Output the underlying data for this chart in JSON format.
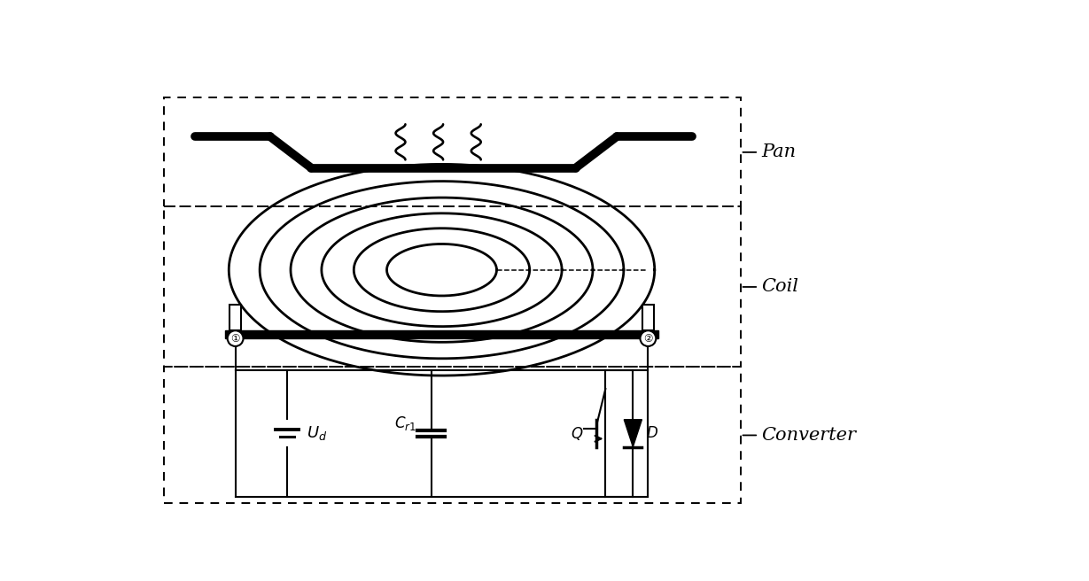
{
  "bg_color": "#ffffff",
  "line_color": "#000000",
  "fig_width": 12.29,
  "fig_height": 6.56,
  "labels": {
    "pan": "Pan",
    "coil": "Coil",
    "converter": "Converter",
    "Ud": "$U_d$",
    "Cr1": "$C_{r1}$",
    "Q": "$Q$",
    "D": "$D$"
  }
}
